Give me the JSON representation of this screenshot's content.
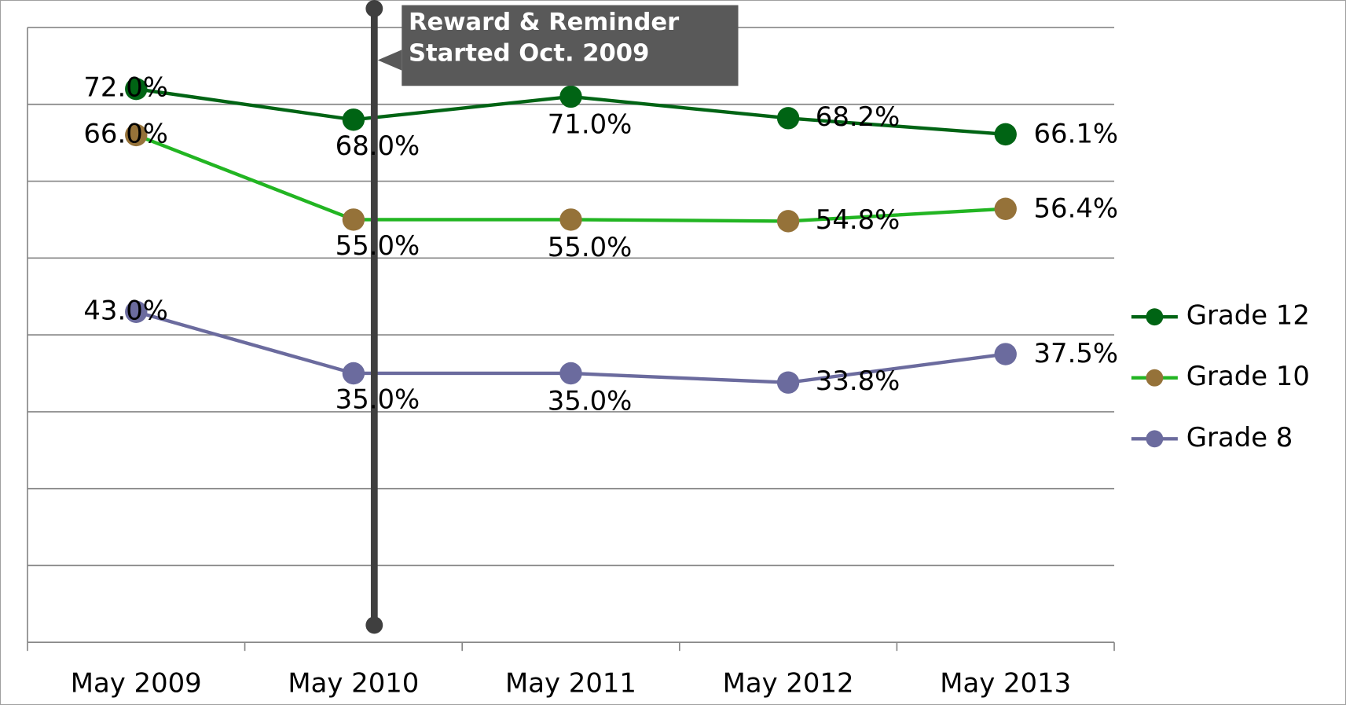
{
  "chart_data": {
    "type": "line",
    "categories": [
      "May 2009",
      "May 2010",
      "May 2011",
      "May 2012",
      "May 2013"
    ],
    "series": [
      {
        "name": "Grade 12",
        "color": "#006414",
        "marker_color": "#006414",
        "values": [
          72.0,
          68.0,
          71.0,
          68.2,
          66.1
        ],
        "value_labels": [
          "72.0%",
          "68.0%",
          "71.0%",
          "68.2%",
          "66.1%"
        ]
      },
      {
        "name": "Grade 10",
        "color": "#22b522",
        "marker_color": "#957239",
        "values": [
          66.0,
          55.0,
          55.0,
          54.8,
          56.4
        ],
        "value_labels": [
          "66.0%",
          "55.0%",
          "55.0%",
          "54.8%",
          "56.4%"
        ]
      },
      {
        "name": "Grade 8",
        "color": "#6b6b9e",
        "marker_color": "#6b6b9e",
        "values": [
          43.0,
          35.0,
          35.0,
          33.8,
          37.5
        ],
        "value_labels": [
          "43.0%",
          "35.0%",
          "35.0%",
          "33.8%",
          "37.5%"
        ]
      }
    ],
    "ylim": [
      0,
      80
    ],
    "yticks": [
      0,
      10,
      20,
      30,
      40,
      50,
      60,
      70,
      80
    ],
    "grid": true,
    "legend": "right",
    "annotation": [
      "Reward & Reminder",
      "Started Oct. 2009"
    ]
  }
}
